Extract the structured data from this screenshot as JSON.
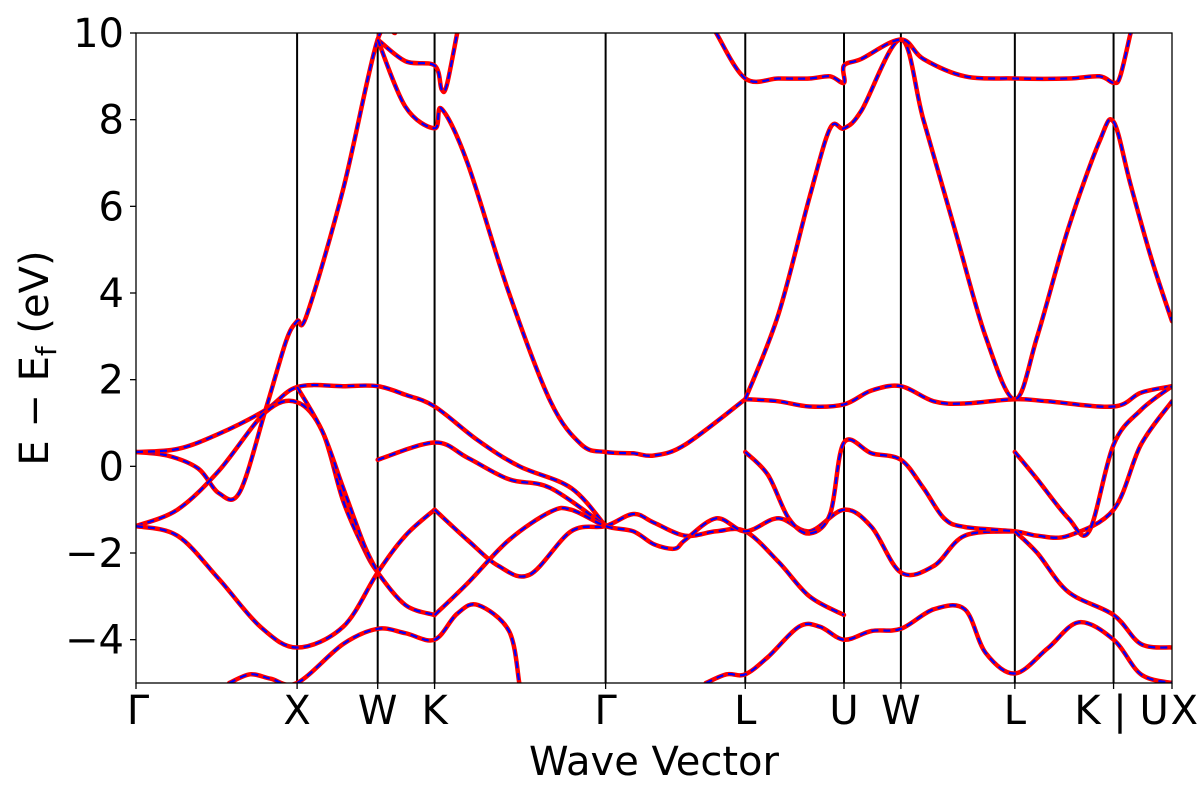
{
  "chart_data": {
    "type": "line",
    "title": "",
    "xlabel": "Wave Vector",
    "ylabel": {
      "main": "E − E",
      "subscript": "f",
      "unit": " (eV)"
    },
    "ylim": [
      -5,
      10
    ],
    "yticks": [
      {
        "value": 10,
        "label": "10"
      },
      {
        "value": 8,
        "label": "8"
      },
      {
        "value": 6,
        "label": "6"
      },
      {
        "value": 4,
        "label": "4"
      },
      {
        "value": 2,
        "label": "2"
      },
      {
        "value": 0,
        "label": "0"
      },
      {
        "value": -2,
        "label": "−2"
      },
      {
        "value": -4,
        "label": "−4"
      }
    ],
    "xlim": [
      0,
      1
    ],
    "kpoints": [
      {
        "label": "Γ",
        "x": 0.0
      },
      {
        "label": "X",
        "x": 0.1555
      },
      {
        "label": "W",
        "x": 0.2333
      },
      {
        "label": "K",
        "x": 0.2882
      },
      {
        "label": "Γ",
        "x": 0.4533
      },
      {
        "label": "L",
        "x": 0.5881
      },
      {
        "label": "U",
        "x": 0.6834
      },
      {
        "label": "W",
        "x": 0.7383
      },
      {
        "label": "L",
        "x": 0.8483
      },
      {
        "label": "K | U",
        "x": 0.9436
      },
      {
        "label": "X",
        "x": 1.0
      }
    ],
    "grid": false,
    "line_colors": {
      "solid": "#ff0000",
      "dashed": "#0000ff",
      "kpoint_lines": "#000000"
    },
    "series": [
      {
        "values": [
          [
            0.0,
            0.33
          ],
          [
            0.03,
            0.25
          ],
          [
            0.06,
            -0.05
          ],
          [
            0.08,
            -0.62
          ],
          [
            0.1,
            -0.6
          ],
          [
            0.125,
            1.3
          ],
          [
            0.145,
            2.9
          ],
          [
            0.1555,
            3.35
          ],
          [
            0.165,
            3.5
          ],
          [
            0.2,
            6.4
          ],
          [
            0.2333,
            9.85
          ],
          [
            0.25,
            10.0
          ]
        ]
      },
      {
        "values": [
          [
            0.0,
            0.33
          ],
          [
            0.04,
            0.4
          ],
          [
            0.08,
            0.75
          ],
          [
            0.125,
            1.3
          ],
          [
            0.1555,
            1.83
          ],
          [
            0.2,
            1.85
          ],
          [
            0.2333,
            1.85
          ],
          [
            0.26,
            1.65
          ],
          [
            0.2882,
            1.38
          ],
          [
            0.33,
            0.6
          ],
          [
            0.37,
            0.0
          ],
          [
            0.42,
            -0.5
          ],
          [
            0.4533,
            -1.38
          ]
        ]
      },
      {
        "values": [
          [
            0.0,
            -1.38
          ],
          [
            0.04,
            -1.0
          ],
          [
            0.08,
            -0.1
          ],
          [
            0.125,
            1.25
          ],
          [
            0.1555,
            1.48
          ],
          [
            0.18,
            0.8
          ],
          [
            0.2,
            -0.8
          ],
          [
            0.22,
            -1.9
          ],
          [
            0.2333,
            -2.45
          ],
          [
            0.26,
            -3.2
          ],
          [
            0.2882,
            -3.43
          ]
        ]
      },
      {
        "values": [
          [
            0.0,
            -1.38
          ],
          [
            0.04,
            -1.6
          ],
          [
            0.08,
            -2.6
          ],
          [
            0.12,
            -3.7
          ],
          [
            0.1555,
            -4.18
          ],
          [
            0.2,
            -3.7
          ],
          [
            0.2333,
            -2.45
          ],
          [
            0.26,
            -1.6
          ],
          [
            0.2882,
            -1.0
          ]
        ]
      },
      {
        "values": [
          [
            0.1555,
            1.83
          ],
          [
            0.18,
            0.8
          ],
          [
            0.2,
            -0.5
          ],
          [
            0.22,
            -1.8
          ],
          [
            0.2333,
            -2.45
          ]
        ]
      },
      {
        "values": [
          [
            0.09,
            -5.0
          ],
          [
            0.11,
            -4.8
          ],
          [
            0.13,
            -4.9
          ],
          [
            0.1555,
            -5.0
          ],
          [
            0.2,
            -4.1
          ],
          [
            0.2333,
            -3.75
          ],
          [
            0.26,
            -3.85
          ],
          [
            0.2882,
            -4.0
          ],
          [
            0.31,
            -3.4
          ],
          [
            0.33,
            -3.2
          ],
          [
            0.36,
            -3.8
          ],
          [
            0.37,
            -5.0
          ]
        ]
      },
      {
        "values": [
          [
            0.2333,
            9.85
          ],
          [
            0.26,
            9.35
          ],
          [
            0.2882,
            9.25
          ],
          [
            0.295,
            8.7
          ],
          [
            0.3,
            8.8
          ],
          [
            0.31,
            10.0
          ]
        ]
      },
      {
        "values": [
          [
            0.2333,
            9.85
          ],
          [
            0.26,
            8.3
          ],
          [
            0.2882,
            7.8
          ],
          [
            0.295,
            8.25
          ],
          [
            0.32,
            7.0
          ],
          [
            0.36,
            4.0
          ],
          [
            0.4,
            1.5
          ],
          [
            0.43,
            0.5
          ],
          [
            0.4533,
            0.33
          ],
          [
            0.48,
            0.3
          ],
          [
            0.5,
            0.25
          ],
          [
            0.53,
            0.5
          ],
          [
            0.5881,
            1.55
          ]
        ]
      },
      {
        "values": [
          [
            0.2333,
            0.15
          ],
          [
            0.2882,
            0.55
          ],
          [
            0.32,
            0.2
          ],
          [
            0.36,
            -0.3
          ],
          [
            0.4,
            -0.5
          ],
          [
            0.4533,
            -1.38
          ]
        ]
      },
      {
        "values": [
          [
            0.2882,
            -1.0
          ],
          [
            0.32,
            -1.7
          ],
          [
            0.35,
            -2.3
          ],
          [
            0.38,
            -2.5
          ],
          [
            0.42,
            -1.5
          ],
          [
            0.4533,
            -1.38
          ],
          [
            0.48,
            -1.1
          ],
          [
            0.5,
            -1.3
          ],
          [
            0.53,
            -1.6
          ],
          [
            0.56,
            -1.5
          ],
          [
            0.5881,
            -1.5
          ],
          [
            0.62,
            -2.2
          ],
          [
            0.65,
            -3.0
          ],
          [
            0.6834,
            -3.43
          ]
        ]
      },
      {
        "values": [
          [
            0.2882,
            -3.43
          ],
          [
            0.32,
            -2.7
          ],
          [
            0.36,
            -1.7
          ],
          [
            0.4,
            -1.05
          ],
          [
            0.42,
            -1.0
          ],
          [
            0.4533,
            -1.38
          ],
          [
            0.48,
            -1.5
          ],
          [
            0.5,
            -1.8
          ],
          [
            0.52,
            -1.9
          ],
          [
            0.53,
            -1.7
          ],
          [
            0.56,
            -1.2
          ],
          [
            0.5881,
            -1.5
          ],
          [
            0.62,
            -1.2
          ],
          [
            0.65,
            -1.5
          ],
          [
            0.6834,
            -1.0
          ],
          [
            0.71,
            -1.4
          ],
          [
            0.7383,
            -2.45
          ],
          [
            0.77,
            -2.3
          ],
          [
            0.8,
            -1.6
          ],
          [
            0.8483,
            -1.5
          ]
        ]
      },
      {
        "values": [
          [
            0.55,
            -5.0
          ],
          [
            0.57,
            -4.8
          ],
          [
            0.5881,
            -4.8
          ],
          [
            0.61,
            -4.4
          ],
          [
            0.64,
            -3.7
          ],
          [
            0.66,
            -3.7
          ],
          [
            0.6834,
            -4.0
          ],
          [
            0.71,
            -3.8
          ],
          [
            0.7383,
            -3.75
          ],
          [
            0.77,
            -3.3
          ],
          [
            0.8,
            -3.3
          ],
          [
            0.82,
            -4.3
          ],
          [
            0.8483,
            -4.78
          ],
          [
            0.88,
            -4.2
          ],
          [
            0.91,
            -3.6
          ],
          [
            0.9436,
            -4.0
          ],
          [
            0.97,
            -4.8
          ],
          [
            1.0,
            -5.0
          ]
        ]
      },
      {
        "values": [
          [
            0.5881,
            1.55
          ],
          [
            0.62,
            1.5
          ],
          [
            0.65,
            1.38
          ],
          [
            0.6834,
            1.43
          ],
          [
            0.71,
            1.75
          ],
          [
            0.7383,
            1.85
          ],
          [
            0.77,
            1.5
          ],
          [
            0.8,
            1.45
          ],
          [
            0.8483,
            1.55
          ],
          [
            0.88,
            1.5
          ],
          [
            0.9436,
            1.38
          ],
          [
            0.97,
            1.7
          ],
          [
            1.0,
            1.85
          ]
        ]
      },
      {
        "values": [
          [
            0.5881,
            1.55
          ],
          [
            0.62,
            3.5
          ],
          [
            0.65,
            6.2
          ],
          [
            0.67,
            7.8
          ],
          [
            0.6834,
            7.8
          ],
          [
            0.7,
            8.2
          ],
          [
            0.7383,
            9.85
          ],
          [
            0.76,
            8.0
          ],
          [
            0.79,
            5.5
          ],
          [
            0.82,
            3.0
          ],
          [
            0.8483,
            1.55
          ],
          [
            0.87,
            3.0
          ],
          [
            0.9,
            5.5
          ],
          [
            0.93,
            7.5
          ],
          [
            0.9436,
            7.95
          ],
          [
            0.96,
            6.5
          ],
          [
            0.98,
            4.8
          ],
          [
            1.0,
            3.35
          ]
        ]
      },
      {
        "values": [
          [
            0.5881,
            0.33
          ],
          [
            0.61,
            -0.2
          ],
          [
            0.63,
            -1.2
          ],
          [
            0.65,
            -1.55
          ],
          [
            0.67,
            -1.1
          ],
          [
            0.6834,
            0.55
          ],
          [
            0.71,
            0.3
          ],
          [
            0.7383,
            0.15
          ],
          [
            0.76,
            -0.5
          ],
          [
            0.78,
            -1.2
          ],
          [
            0.8,
            -1.4
          ],
          [
            0.8483,
            -1.5
          ],
          [
            0.87,
            -1.6
          ],
          [
            0.9,
            -1.6
          ],
          [
            0.9436,
            -1.0
          ],
          [
            0.97,
            0.5
          ],
          [
            1.0,
            1.5
          ]
        ]
      },
      {
        "values": [
          [
            0.56,
            10.0
          ],
          [
            0.5881,
            8.95
          ],
          [
            0.62,
            8.95
          ],
          [
            0.65,
            8.95
          ],
          [
            0.67,
            9.0
          ],
          [
            0.6834,
            8.85
          ],
          [
            0.6834,
            9.25
          ],
          [
            0.7,
            9.4
          ],
          [
            0.7383,
            9.85
          ],
          [
            0.76,
            9.4
          ],
          [
            0.8,
            9.0
          ],
          [
            0.8483,
            8.95
          ],
          [
            0.9,
            8.95
          ],
          [
            0.93,
            9.0
          ],
          [
            0.9436,
            8.85
          ],
          [
            0.95,
            9.0
          ],
          [
            0.96,
            10.0
          ]
        ]
      },
      {
        "values": [
          [
            0.8483,
            0.33
          ],
          [
            0.87,
            -0.3
          ],
          [
            0.9,
            -1.2
          ],
          [
            0.92,
            -1.5
          ],
          [
            0.9436,
            0.5
          ],
          [
            0.97,
            1.3
          ],
          [
            1.0,
            1.85
          ]
        ]
      },
      {
        "values": [
          [
            0.8483,
            -1.5
          ],
          [
            0.87,
            -2.0
          ],
          [
            0.9,
            -2.9
          ],
          [
            0.9436,
            -3.43
          ],
          [
            0.97,
            -4.1
          ],
          [
            1.0,
            -4.18
          ]
        ]
      }
    ]
  }
}
